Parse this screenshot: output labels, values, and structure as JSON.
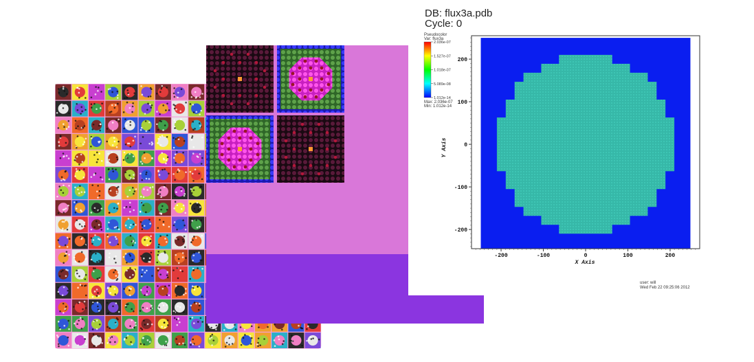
{
  "header": {
    "db_label": "DB: flux3a.pdb",
    "cycle_label": "Cycle: 0"
  },
  "legend": {
    "plot_type": "Pseudocolor",
    "var_label": "Var: flux3a",
    "ticks": [
      "2.036e-07",
      "1.527e-07",
      "1.018e-07",
      "5.089e-08",
      "1.012e-14"
    ],
    "max_label": "Max: 2.036e-07",
    "min_label": "Min: 1.012e-14"
  },
  "footer": {
    "user": "user: will",
    "timestamp": "Wed Feb 22 09:25:06 2012"
  },
  "colors": {
    "background_blue": "#0a1ef0",
    "disc_teal": "#36b8a8",
    "mesh_purple": "#8b35e0",
    "mesh_magenta": "#d977d9",
    "assembly_bg": "#2a0f1f",
    "assembly_ring_green": "#4d8a3c",
    "assembly_core_pink": "#f23cdc",
    "assembly_edge_blue": "#2a2af5"
  },
  "chart_data": {
    "type": "heatmap",
    "title": "",
    "xlabel": "X Axis",
    "ylabel": "Y Axis",
    "xlim": [
      -270,
      270
    ],
    "ylim": [
      -245,
      255
    ],
    "xticks": [
      -200,
      -100,
      0,
      100,
      200
    ],
    "yticks": [
      -200,
      -100,
      0,
      100,
      200
    ],
    "xtick_labels": [
      "-200",
      "-100",
      "0",
      "100",
      "200"
    ],
    "ytick_labels": [
      "-200",
      "-100",
      "0",
      "100",
      "200"
    ],
    "variable": "flux3a",
    "value_range": [
      1.012e-14,
      2.036e-07
    ],
    "background_value": 1.012e-14,
    "disc_value": 5.089e-08,
    "disc_radius": 210,
    "grid": false
  }
}
